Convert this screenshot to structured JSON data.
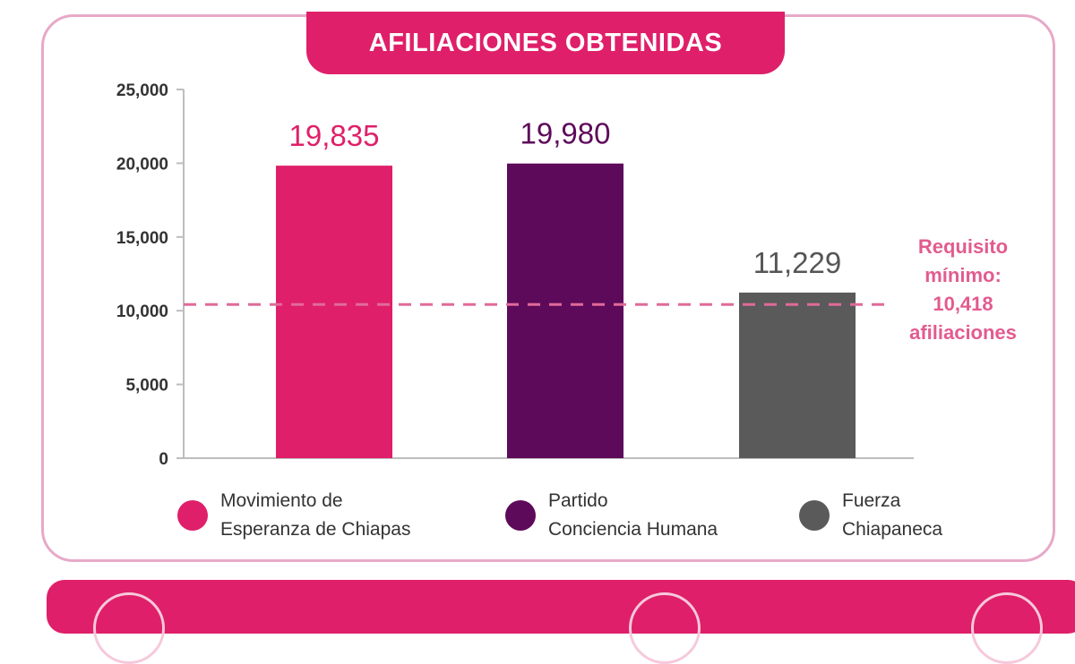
{
  "chart_data": {
    "type": "bar",
    "title": "AFILIACIONES OBTENIDAS",
    "categories": [
      "Movimiento de Esperanza de Chiapas",
      "Partido Conciencia Humana",
      "Fuerza Chiapaneca"
    ],
    "values": [
      19835,
      19980,
      11229
    ],
    "data_labels": [
      "19,835",
      "19,980",
      "11,229"
    ],
    "colors": [
      "#df1f69",
      "#5e0a5a",
      "#5a5a5a"
    ],
    "label_colors": [
      "#df1f69",
      "#5e0a5a",
      "#555555"
    ],
    "ylim": [
      0,
      25000
    ],
    "yticks": [
      0,
      5000,
      10000,
      15000,
      20000,
      25000
    ],
    "ytick_labels": [
      "0",
      "5,000",
      "10,000",
      "15,000",
      "20,000",
      "25,000"
    ],
    "reference_line": {
      "value": 10418,
      "color": "#e06a99"
    },
    "legend": {
      "placement": "bottom",
      "entries": [
        "Movimiento de\nEsperanza de Chiapas",
        "Partido\nConciencia Humana",
        "Fuerza\nChiapaneca"
      ]
    },
    "annotation": "Requisito\nmínimo:\n10,418\nafiliaciones",
    "grid": false
  }
}
